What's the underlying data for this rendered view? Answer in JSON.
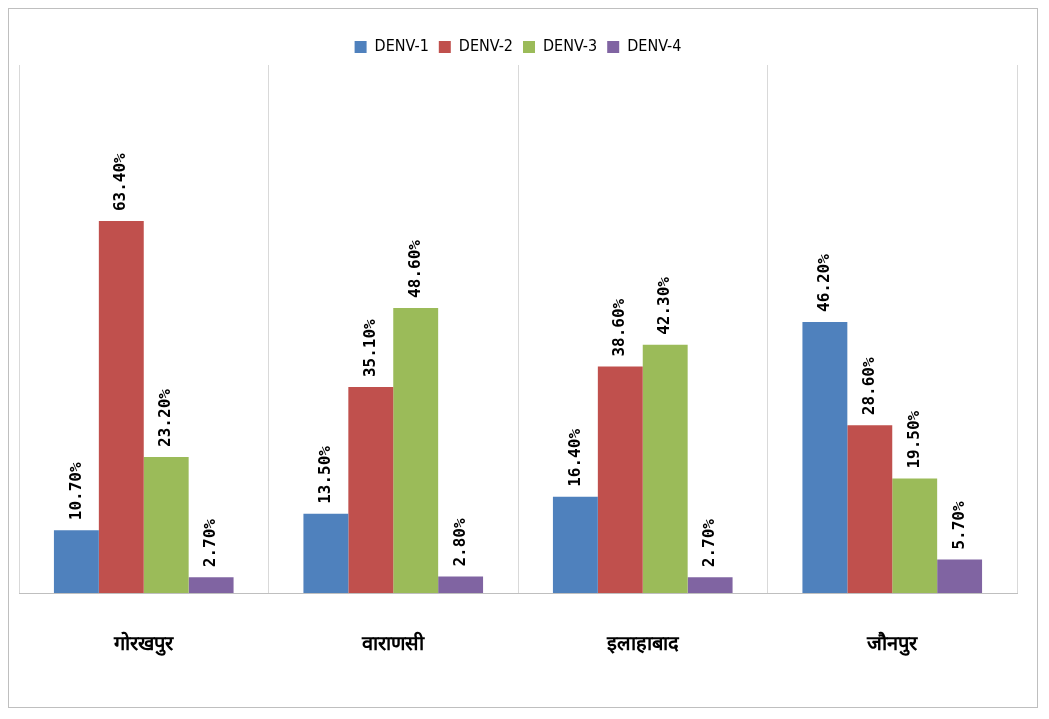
{
  "chart_data": {
    "type": "bar",
    "categories": [
      "गोरखपुर",
      "वाराणसी",
      "इलाहाबाद",
      "जौनपुर"
    ],
    "series": [
      {
        "name": "DENV-1",
        "color": "#4f81bd",
        "values": [
          10.7,
          13.5,
          16.4,
          46.2
        ],
        "value_labels": [
          "10.70%",
          "13.50%",
          "16.40%",
          "46.20%"
        ]
      },
      {
        "name": "DENV-2",
        "color": "#c0504d",
        "values": [
          63.4,
          35.1,
          38.6,
          28.6
        ],
        "value_labels": [
          "63.40%",
          "35.10%",
          "38.60%",
          "28.60%"
        ]
      },
      {
        "name": "DENV-3",
        "color": "#9bbb59",
        "values": [
          23.2,
          48.6,
          42.3,
          19.5
        ],
        "value_labels": [
          "23.20%",
          "48.60%",
          "42.30%",
          "19.50%"
        ]
      },
      {
        "name": "DENV-4",
        "color": "#8064a2",
        "values": [
          2.7,
          2.8,
          2.7,
          5.7
        ],
        "value_labels": [
          "2.70%",
          "2.80%",
          "2.70%",
          "5.70%"
        ]
      }
    ],
    "grid": "x",
    "legend": "top"
  }
}
